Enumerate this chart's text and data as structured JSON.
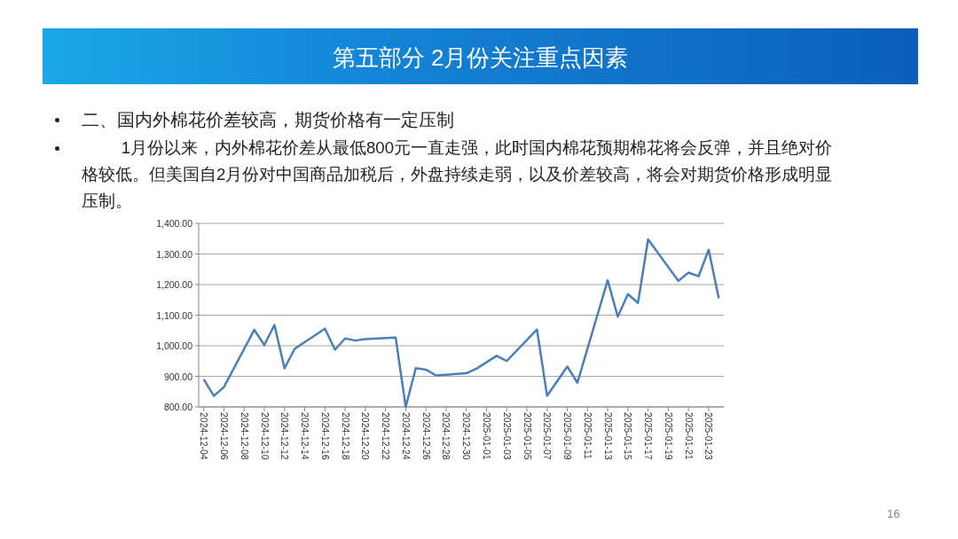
{
  "chart_data": {
    "type": "line",
    "title": "第五部分 2月份关注重点因素",
    "subtitle": "二、国内外棉花价差较高，期货价格有一定压制",
    "annotations": [
      "1月份以来，内外棉花价差从最低800元一直走强，此时国内棉花预期棉花将会反弹，并且绝对价格较低。但美国自2月份对中国商品加税后，外盘持续走弱，以及价差较高，将会对期货价格形成明显压制。",
      "16"
    ],
    "x": [
      "2024-12-04",
      "2024-12-05",
      "2024-12-06",
      "2024-12-09",
      "2024-12-10",
      "2024-12-11",
      "2024-12-12",
      "2024-12-13",
      "2024-12-16",
      "2024-12-17",
      "2024-12-18",
      "2024-12-19",
      "2024-12-20",
      "2024-12-23",
      "2024-12-24",
      "2024-12-25",
      "2024-12-26",
      "2024-12-27",
      "2024-12-30",
      "2024-12-31",
      "2025-01-02",
      "2025-01-03",
      "2025-01-06",
      "2025-01-07",
      "2025-01-08",
      "2025-01-09",
      "2025-01-10",
      "2025-01-13",
      "2025-01-14",
      "2025-01-15",
      "2025-01-16",
      "2025-01-17",
      "2025-01-20",
      "2025-01-21",
      "2025-01-22",
      "2025-01-23",
      "2025-01-24"
    ],
    "values": [
      890,
      836,
      865,
      1052,
      1002,
      1068,
      926,
      990,
      1056,
      987,
      1024,
      1017,
      1022,
      1027,
      800,
      927,
      922,
      903,
      910,
      925,
      967,
      950,
      1053,
      836,
      884,
      932,
      879,
      1214,
      1095,
      1169,
      1140,
      1348,
      1212,
      1239,
      1227,
      1314,
      1155
    ],
    "color": "#4a7ebb",
    "line_style": "solid",
    "marker": "none",
    "grid": "y",
    "xlim": [
      "2024-12-03T12:00",
      "2025-01-24T12:00"
    ],
    "xticks": [
      "2024-12-04",
      "2024-12-06",
      "2024-12-08",
      "2024-12-10",
      "2024-12-12",
      "2024-12-14",
      "2024-12-16",
      "2024-12-18",
      "2024-12-20",
      "2024-12-22",
      "2024-12-24",
      "2024-12-26",
      "2024-12-28",
      "2024-12-30",
      "2025-01-01",
      "2025-01-03",
      "2025-01-05",
      "2025-01-07",
      "2025-01-09",
      "2025-01-11",
      "2025-01-13",
      "2025-01-15",
      "2025-01-17",
      "2025-01-19",
      "2025-01-21",
      "2025-01-23"
    ],
    "ylim": [
      800,
      1400
    ],
    "yticks": [
      {
        "value": 800,
        "label": "800.00"
      },
      {
        "value": 900,
        "label": "900.00"
      },
      {
        "value": 1000,
        "label": "1,000.00"
      },
      {
        "value": 1100,
        "label": "1,100.00"
      },
      {
        "value": 1200,
        "label": "1,200.00"
      },
      {
        "value": 1300,
        "label": "1,300.00"
      },
      {
        "value": 1400,
        "label": "1,400.00"
      }
    ]
  }
}
